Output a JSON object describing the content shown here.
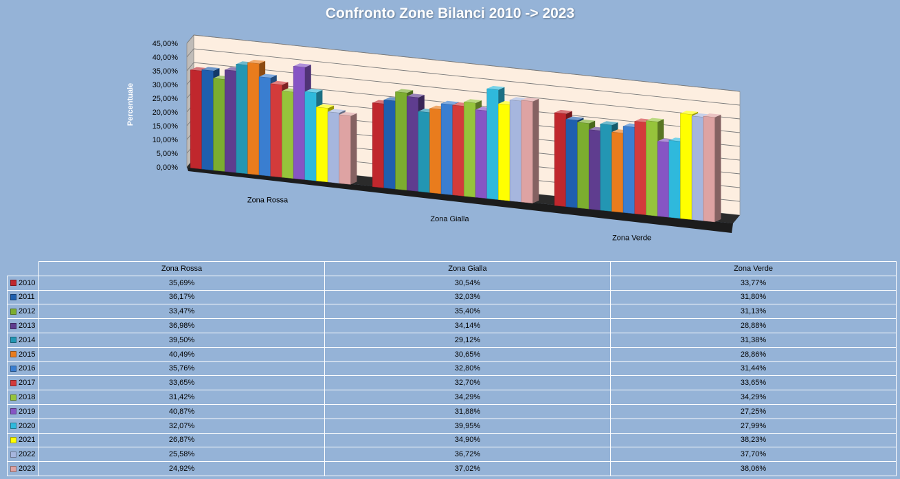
{
  "title": "Confronto Zone Bilanci 2010 -> 2023",
  "chart_data": {
    "type": "bar",
    "title": "Confronto Zone Bilanci 2010 -> 2023",
    "ylabel": "Percentuale",
    "xlabel": "",
    "ylim": [
      0,
      45
    ],
    "yticks": [
      "0,00%",
      "5,00%",
      "10,00%",
      "15,00%",
      "20,00%",
      "25,00%",
      "30,00%",
      "35,00%",
      "40,00%",
      "45,00%"
    ],
    "grid": true,
    "categories": [
      "Zona Rossa",
      "Zona Gialla",
      "Zona Verde"
    ],
    "series": [
      {
        "name": "2010",
        "color": "#c0272d",
        "values": [
          35.69,
          30.54,
          33.77
        ]
      },
      {
        "name": "2011",
        "color": "#1f5fae",
        "values": [
          36.17,
          32.03,
          31.8
        ]
      },
      {
        "name": "2012",
        "color": "#7cad2f",
        "values": [
          33.47,
          35.4,
          31.13
        ]
      },
      {
        "name": "2013",
        "color": "#5f3d8f",
        "values": [
          36.98,
          34.14,
          28.88
        ]
      },
      {
        "name": "2014",
        "color": "#2396b3",
        "values": [
          39.5,
          29.12,
          31.38
        ]
      },
      {
        "name": "2015",
        "color": "#e97c1d",
        "values": [
          40.49,
          30.65,
          28.86
        ]
      },
      {
        "name": "2016",
        "color": "#3a7ed0",
        "values": [
          35.76,
          32.8,
          31.44
        ]
      },
      {
        "name": "2017",
        "color": "#d33b3b",
        "values": [
          33.65,
          32.7,
          33.65
        ]
      },
      {
        "name": "2018",
        "color": "#96c43b",
        "values": [
          31.42,
          34.29,
          34.29
        ]
      },
      {
        "name": "2019",
        "color": "#8655c4",
        "values": [
          40.87,
          31.88,
          27.25
        ]
      },
      {
        "name": "2020",
        "color": "#2fb9dc",
        "values": [
          32.07,
          39.95,
          27.99
        ]
      },
      {
        "name": "2021",
        "color": "#ffff00",
        "values": [
          26.87,
          34.9,
          38.23
        ]
      },
      {
        "name": "2022",
        "color": "#a6b6de",
        "values": [
          25.58,
          36.72,
          37.7
        ]
      },
      {
        "name": "2023",
        "color": "#dea3a3",
        "values": [
          24.92,
          37.02,
          38.06
        ]
      }
    ]
  },
  "table": {
    "columns": [
      "Zona Rossa",
      "Zona Gialla",
      "Zona Verde"
    ],
    "rows": [
      {
        "year": "2010",
        "cells": [
          "35,69%",
          "30,54%",
          "33,77%"
        ]
      },
      {
        "year": "2011",
        "cells": [
          "36,17%",
          "32,03%",
          "31,80%"
        ]
      },
      {
        "year": "2012",
        "cells": [
          "33,47%",
          "35,40%",
          "31,13%"
        ]
      },
      {
        "year": "2013",
        "cells": [
          "36,98%",
          "34,14%",
          "28,88%"
        ]
      },
      {
        "year": "2014",
        "cells": [
          "39,50%",
          "29,12%",
          "31,38%"
        ]
      },
      {
        "year": "2015",
        "cells": [
          "40,49%",
          "30,65%",
          "28,86%"
        ]
      },
      {
        "year": "2016",
        "cells": [
          "35,76%",
          "32,80%",
          "31,44%"
        ]
      },
      {
        "year": "2017",
        "cells": [
          "33,65%",
          "32,70%",
          "33,65%"
        ]
      },
      {
        "year": "2018",
        "cells": [
          "31,42%",
          "34,29%",
          "34,29%"
        ]
      },
      {
        "year": "2019",
        "cells": [
          "40,87%",
          "31,88%",
          "27,25%"
        ]
      },
      {
        "year": "2020",
        "cells": [
          "32,07%",
          "39,95%",
          "27,99%"
        ]
      },
      {
        "year": "2021",
        "cells": [
          "26,87%",
          "34,90%",
          "38,23%"
        ]
      },
      {
        "year": "2022",
        "cells": [
          "25,58%",
          "36,72%",
          "37,70%"
        ]
      },
      {
        "year": "2023",
        "cells": [
          "24,92%",
          "37,02%",
          "38,06%"
        ]
      }
    ]
  }
}
